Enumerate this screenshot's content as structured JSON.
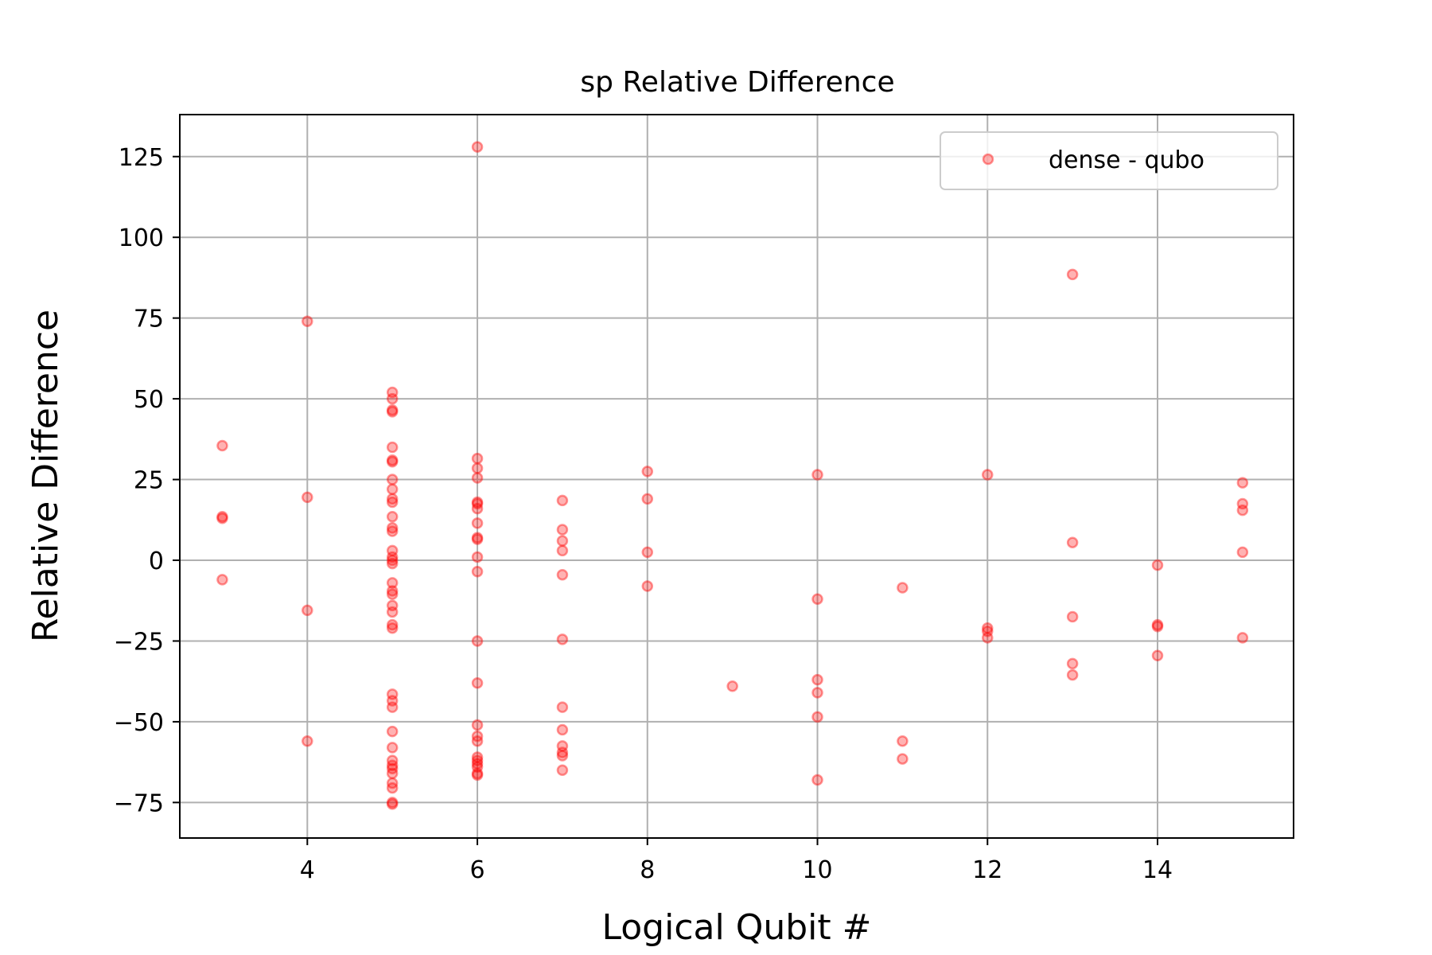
{
  "chart_data": {
    "type": "scatter",
    "title": "sp Relative Difference",
    "xlabel": "Logical Qubit #",
    "ylabel": "Relative Difference",
    "xlim": [
      2.5,
      15.6
    ],
    "ylim": [
      -86,
      138
    ],
    "xticks": [
      4,
      6,
      8,
      10,
      12,
      14
    ],
    "yticks": [
      -75,
      -50,
      -25,
      0,
      25,
      50,
      75,
      100,
      125
    ],
    "xtick_labels": [
      "4",
      "6",
      "8",
      "10",
      "12",
      "14"
    ],
    "ytick_labels": [
      "−75",
      "−50",
      "−25",
      "0",
      "25",
      "50",
      "75",
      "100",
      "125"
    ],
    "grid": true,
    "legend_position": "top-right",
    "series": [
      {
        "name": "dense - qubo",
        "color": "#ff0000",
        "marker": "circle",
        "points": [
          [
            3,
            35.5
          ],
          [
            3,
            13.5
          ],
          [
            3,
            13.0
          ],
          [
            3,
            -6.0
          ],
          [
            4,
            74
          ],
          [
            4,
            19.5
          ],
          [
            4,
            -15.5
          ],
          [
            4,
            -56
          ],
          [
            5,
            52
          ],
          [
            5,
            50
          ],
          [
            5,
            46.5
          ],
          [
            5,
            46
          ],
          [
            5,
            35
          ],
          [
            5,
            31
          ],
          [
            5,
            30.5
          ],
          [
            5,
            25
          ],
          [
            5,
            22
          ],
          [
            5,
            19
          ],
          [
            5,
            18
          ],
          [
            5,
            13.5
          ],
          [
            5,
            10
          ],
          [
            5,
            9
          ],
          [
            5,
            3
          ],
          [
            5,
            1
          ],
          [
            5,
            0
          ],
          [
            5,
            -1
          ],
          [
            5,
            -7
          ],
          [
            5,
            -9.5
          ],
          [
            5,
            -10.5
          ],
          [
            5,
            -14
          ],
          [
            5,
            -16
          ],
          [
            5,
            -20
          ],
          [
            5,
            -21
          ],
          [
            5,
            -41.5
          ],
          [
            5,
            -43.5
          ],
          [
            5,
            -45.5
          ],
          [
            5,
            -53
          ],
          [
            5,
            -58
          ],
          [
            5,
            -62
          ],
          [
            5,
            -63.5
          ],
          [
            5,
            -64.5
          ],
          [
            5,
            -66
          ],
          [
            5,
            -69
          ],
          [
            5,
            -70.5
          ],
          [
            5,
            -75
          ],
          [
            5,
            -75.5
          ],
          [
            6,
            128
          ],
          [
            6,
            31.5
          ],
          [
            6,
            28.5
          ],
          [
            6,
            25.5
          ],
          [
            6,
            18
          ],
          [
            6,
            17.5
          ],
          [
            6,
            16
          ],
          [
            6,
            11.5
          ],
          [
            6,
            7
          ],
          [
            6,
            6.5
          ],
          [
            6,
            1
          ],
          [
            6,
            -3.5
          ],
          [
            6,
            -25
          ],
          [
            6,
            -38
          ],
          [
            6,
            -51
          ],
          [
            6,
            -54.5
          ],
          [
            6,
            -56
          ],
          [
            6,
            -61
          ],
          [
            6,
            -62
          ],
          [
            6,
            -63
          ],
          [
            6,
            -64
          ],
          [
            6,
            -66
          ],
          [
            6,
            -66.5
          ],
          [
            7,
            18.5
          ],
          [
            7,
            9.5
          ],
          [
            7,
            6
          ],
          [
            7,
            3
          ],
          [
            7,
            -4.5
          ],
          [
            7,
            -24.5
          ],
          [
            7,
            -45.5
          ],
          [
            7,
            -52.5
          ],
          [
            7,
            -57.5
          ],
          [
            7,
            -59.5
          ],
          [
            7,
            -60.5
          ],
          [
            7,
            -65
          ],
          [
            8,
            27.5
          ],
          [
            8,
            19
          ],
          [
            8,
            2.5
          ],
          [
            8,
            -8
          ],
          [
            9,
            -39
          ],
          [
            10,
            26.5
          ],
          [
            10,
            -12
          ],
          [
            10,
            -37
          ],
          [
            10,
            -41
          ],
          [
            10,
            -48.5
          ],
          [
            10,
            -68
          ],
          [
            11,
            -8.5
          ],
          [
            11,
            -56
          ],
          [
            11,
            -61.5
          ],
          [
            12,
            26.5
          ],
          [
            12,
            -21
          ],
          [
            12,
            -22
          ],
          [
            12,
            -24
          ],
          [
            13,
            88.5
          ],
          [
            13,
            5.5
          ],
          [
            13,
            -17.5
          ],
          [
            13,
            -32
          ],
          [
            13,
            -35.5
          ],
          [
            14,
            -1.5
          ],
          [
            14,
            -20
          ],
          [
            14,
            -20.5
          ],
          [
            14,
            -29.5
          ],
          [
            15,
            24
          ],
          [
            15,
            17.5
          ],
          [
            15,
            15.5
          ],
          [
            15,
            2.5
          ],
          [
            15,
            -24
          ]
        ]
      }
    ]
  }
}
